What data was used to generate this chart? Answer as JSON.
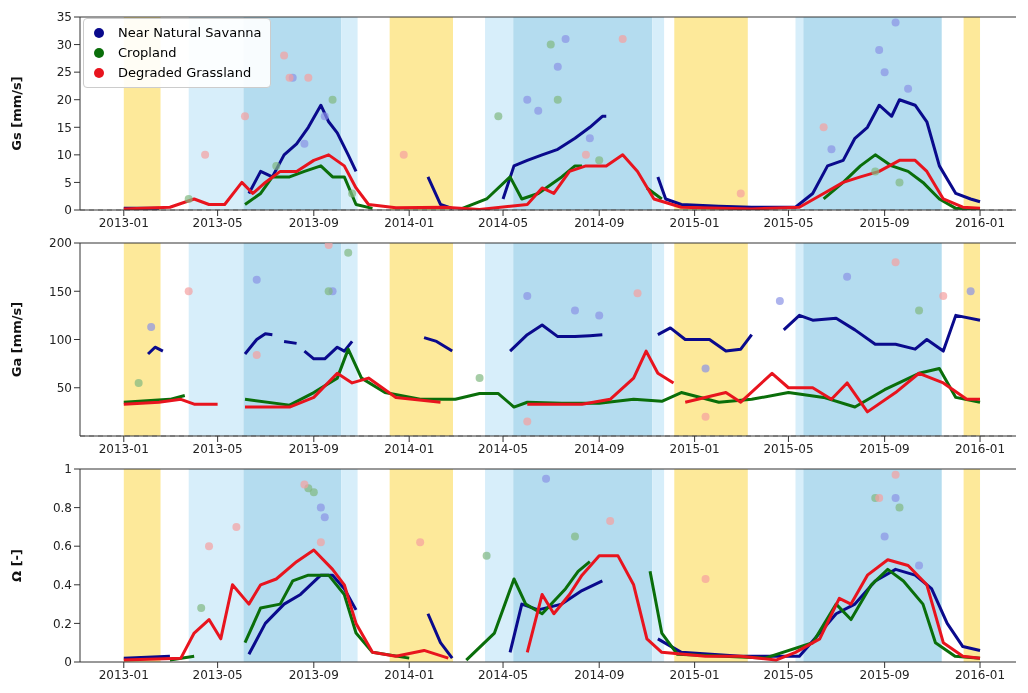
{
  "chart_data": [
    {
      "type": "line",
      "ylabel": "Gs [mm/s]",
      "xlim": [
        "2012-11-06",
        "2016-02-16"
      ],
      "xticks": [
        "2013-01",
        "2013-05",
        "2013-09",
        "2014-01",
        "2014-05",
        "2014-09",
        "2015-01",
        "2015-05",
        "2015-09",
        "2016-01"
      ],
      "ylim": [
        0,
        35
      ],
      "yticks": [
        0,
        5,
        10,
        15,
        20,
        25,
        30,
        35
      ],
      "legend": "top left",
      "ref_lines": [
        {
          "axis": "y",
          "value": 0,
          "color": "#888888",
          "line_style": "dashed"
        }
      ],
      "bands": [
        {
          "axis": "x",
          "from": "2013-01-01",
          "to": "2013-02-17",
          "color": "#fde99a"
        },
        {
          "axis": "x",
          "from": "2013-03-25",
          "to": "2013-06-03",
          "color": "#d7eefa"
        },
        {
          "axis": "x",
          "from": "2013-06-03",
          "to": "2013-10-06",
          "color": "#b4dcef"
        },
        {
          "axis": "x",
          "from": "2013-10-06",
          "to": "2013-10-27",
          "color": "#d7eefa"
        },
        {
          "axis": "x",
          "from": "2013-12-07",
          "to": "2014-02-26",
          "color": "#fde99a"
        },
        {
          "axis": "x",
          "from": "2014-04-08",
          "to": "2014-05-14",
          "color": "#d7eefa"
        },
        {
          "axis": "x",
          "from": "2014-05-14",
          "to": "2014-11-08",
          "color": "#b4dcef"
        },
        {
          "axis": "x",
          "from": "2014-11-08",
          "to": "2014-11-23",
          "color": "#d7eefa"
        },
        {
          "axis": "x",
          "from": "2014-12-06",
          "to": "2015-03-10",
          "color": "#fde99a"
        },
        {
          "axis": "x",
          "from": "2015-05-10",
          "to": "2015-05-20",
          "color": "#d7eefa"
        },
        {
          "axis": "x",
          "from": "2015-05-20",
          "to": "2015-11-13",
          "color": "#b4dcef"
        },
        {
          "axis": "x",
          "from": "2015-12-11",
          "to": "2016-01-01",
          "color": "#fde99a"
        }
      ],
      "series": [
        {
          "type": "scatter",
          "color": "#8a93e6",
          "x": [
            "2013-08-05",
            "2013-08-20",
            "2013-09-15",
            "2014-06-01",
            "2014-06-15",
            "2014-07-10",
            "2014-07-20",
            "2014-08-20",
            "2015-08-25",
            "2015-09-01",
            "2015-09-15",
            "2015-10-01",
            "2015-06-25"
          ],
          "values": [
            24,
            12,
            17,
            20,
            18,
            26,
            31,
            13,
            29,
            25,
            34,
            22,
            11
          ]
        },
        {
          "type": "scatter",
          "color": "#80b880",
          "x": [
            "2013-03-25",
            "2013-07-15",
            "2013-09-25",
            "2014-04-25",
            "2014-07-01",
            "2014-07-10",
            "2014-09-01",
            "2015-08-20",
            "2015-09-20",
            "2013-10-20"
          ],
          "values": [
            2,
            8,
            20,
            17,
            30,
            20,
            9,
            7,
            5,
            3
          ]
        },
        {
          "type": "scatter",
          "color": "#f5a0a0",
          "x": [
            "2013-04-15",
            "2013-07-25",
            "2013-08-01",
            "2013-08-25",
            "2013-12-25",
            "2014-10-01",
            "2014-08-15",
            "2015-06-15",
            "2015-03-01",
            "2013-06-05"
          ],
          "values": [
            10,
            28,
            24,
            24,
            10,
            31,
            10,
            15,
            3,
            17
          ]
        },
        {
          "type": "line",
          "name": "Near Natural Savanna",
          "color": "#0a0a8c",
          "x": [
            "2013-01-01",
            "2013-02-15",
            "2013-04-01",
            "2013-06-10",
            "2013-06-25",
            "2013-07-10",
            "2013-07-25",
            "2013-08-10",
            "2013-08-25",
            "2013-09-10",
            "2013-09-20",
            "2013-10-01",
            "2013-10-15",
            "2013-10-25",
            "2013-12-01",
            "2014-01-25",
            "2014-02-10",
            "2014-02-25",
            "2014-04-01",
            "2014-05-01",
            "2014-05-15",
            "2014-06-01",
            "2014-06-20",
            "2014-07-10",
            "2014-08-01",
            "2014-08-20",
            "2014-09-05",
            "2014-09-10",
            "2014-10-15",
            "2014-11-15",
            "2014-11-25",
            "2014-12-15",
            "2015-02-01",
            "2015-03-15",
            "2015-05-10",
            "2015-06-01",
            "2015-06-20",
            "2015-07-10",
            "2015-07-25",
            "2015-08-10",
            "2015-08-25",
            "2015-09-10",
            "2015-09-20",
            "2015-10-10",
            "2015-10-25",
            "2015-11-10",
            "2015-12-01",
            "2015-12-20",
            "2016-01-01"
          ],
          "values": [
            0.3,
            0.3,
            null,
            3,
            7,
            6,
            10,
            12,
            15,
            19,
            16,
            14,
            10,
            7,
            null,
            6,
            1,
            0.3,
            null,
            2,
            8,
            9,
            10,
            11,
            13,
            15,
            17,
            17,
            null,
            6,
            2,
            1,
            0.7,
            0.5,
            0.5,
            3,
            8,
            9,
            13,
            15,
            19,
            17,
            20,
            19,
            16,
            8,
            3,
            2,
            1.5
          ]
        },
        {
          "type": "line",
          "name": "Cropland",
          "color": "#0a6e0a",
          "x": [
            "2013-06-05",
            "2013-06-25",
            "2013-07-10",
            "2013-08-01",
            "2013-08-20",
            "2013-09-10",
            "2013-09-25",
            "2013-10-10",
            "2013-10-25",
            "2013-11-15",
            "2014-01-01",
            "2014-03-10",
            "2014-04-10",
            "2014-05-10",
            "2014-05-25",
            "2014-06-15",
            "2014-07-15",
            "2014-08-01",
            "2014-08-10",
            "2014-09-20",
            "2014-11-01",
            "2014-11-20",
            "2015-03-01",
            "2015-06-15",
            "2015-07-10",
            "2015-08-01",
            "2015-08-20",
            "2015-09-10",
            "2015-10-01",
            "2015-10-20",
            "2015-11-10",
            "2015-12-01",
            "2016-01-01"
          ],
          "values": [
            1,
            3,
            6,
            6,
            7,
            8,
            6,
            6,
            1,
            0.3,
            null,
            0.3,
            2,
            6,
            2,
            3,
            6,
            8,
            8,
            null,
            4,
            2,
            null,
            2,
            5,
            8,
            10,
            8,
            7,
            5,
            2,
            0.3,
            0.2
          ]
        },
        {
          "type": "line",
          "name": "Degraded Grassland",
          "color": "#e8141e",
          "x": [
            "2013-01-01",
            "2013-03-01",
            "2013-04-01",
            "2013-04-20",
            "2013-05-10",
            "2013-06-01",
            "2013-06-15",
            "2013-07-01",
            "2013-07-20",
            "2013-08-10",
            "2013-09-01",
            "2013-09-20",
            "2013-10-10",
            "2013-10-25",
            "2013-11-10",
            "2013-12-15",
            "2014-02-15",
            "2014-04-01",
            "2014-06-01",
            "2014-06-20",
            "2014-07-05",
            "2014-07-25",
            "2014-08-15",
            "2014-09-10",
            "2014-10-01",
            "2014-10-20",
            "2014-11-10",
            "2014-12-15",
            "2015-03-15",
            "2015-05-15",
            "2015-06-15",
            "2015-07-10",
            "2015-08-01",
            "2015-08-25",
            "2015-09-20",
            "2015-10-10",
            "2015-10-25",
            "2015-11-15",
            "2015-12-10",
            "2016-01-01"
          ],
          "values": [
            0.2,
            0.5,
            2,
            1,
            1,
            5,
            3,
            5,
            7,
            7,
            9,
            10,
            8,
            4,
            1,
            0.4,
            0.5,
            0.1,
            1,
            4,
            3,
            7,
            8,
            8,
            10,
            7,
            2,
            0.5,
            0.2,
            0.5,
            3,
            5,
            6,
            7,
            9,
            9,
            7,
            2,
            0.5,
            0.3
          ]
        }
      ]
    },
    {
      "type": "line",
      "ylabel": "Ga [mm/s]",
      "xlim": [
        "2012-11-06",
        "2016-02-16"
      ],
      "xticks": [
        "2013-01",
        "2013-05",
        "2013-09",
        "2014-01",
        "2014-05",
        "2014-09",
        "2015-01",
        "2015-05",
        "2015-09",
        "2016-01"
      ],
      "ylim": [
        0,
        200
      ],
      "yticks": [
        50,
        100,
        150,
        200
      ],
      "ref_lines": [
        {
          "axis": "y",
          "value": 0,
          "color": "#888888",
          "line_style": "dashed"
        }
      ],
      "bands": [
        {
          "axis": "x",
          "from": "2013-01-01",
          "to": "2013-02-17",
          "color": "#fde99a"
        },
        {
          "axis": "x",
          "from": "2013-03-25",
          "to": "2013-06-03",
          "color": "#d7eefa"
        },
        {
          "axis": "x",
          "from": "2013-06-03",
          "to": "2013-10-06",
          "color": "#b4dcef"
        },
        {
          "axis": "x",
          "from": "2013-10-06",
          "to": "2013-10-27",
          "color": "#d7eefa"
        },
        {
          "axis": "x",
          "from": "2013-12-07",
          "to": "2014-02-26",
          "color": "#fde99a"
        },
        {
          "axis": "x",
          "from": "2014-04-08",
          "to": "2014-05-14",
          "color": "#d7eefa"
        },
        {
          "axis": "x",
          "from": "2014-05-14",
          "to": "2014-11-08",
          "color": "#b4dcef"
        },
        {
          "axis": "x",
          "from": "2014-11-08",
          "to": "2014-11-23",
          "color": "#d7eefa"
        },
        {
          "axis": "x",
          "from": "2014-12-06",
          "to": "2015-03-10",
          "color": "#fde99a"
        },
        {
          "axis": "x",
          "from": "2015-05-10",
          "to": "2015-05-20",
          "color": "#d7eefa"
        },
        {
          "axis": "x",
          "from": "2015-05-20",
          "to": "2015-11-13",
          "color": "#b4dcef"
        },
        {
          "axis": "x",
          "from": "2015-12-11",
          "to": "2016-01-01",
          "color": "#fde99a"
        }
      ],
      "series": [
        {
          "type": "scatter",
          "color": "#8a93e6",
          "x": [
            "2013-02-05",
            "2013-06-20",
            "2013-09-25",
            "2014-06-01",
            "2014-08-01",
            "2015-01-15",
            "2015-04-20",
            "2015-07-15",
            "2015-12-20",
            "2014-09-01"
          ],
          "values": [
            113,
            162,
            150,
            145,
            130,
            70,
            140,
            165,
            150,
            125
          ]
        },
        {
          "type": "scatter",
          "color": "#80b880",
          "x": [
            "2013-10-15",
            "2013-09-20",
            "2015-10-15",
            "2014-04-01",
            "2013-01-20"
          ],
          "values": [
            190,
            150,
            130,
            60,
            55
          ]
        },
        {
          "type": "scatter",
          "color": "#f5a0a0",
          "x": [
            "2013-03-25",
            "2013-09-20",
            "2014-10-20",
            "2015-09-15",
            "2015-11-15",
            "2015-01-15",
            "2013-06-20",
            "2014-06-01"
          ],
          "values": [
            150,
            198,
            148,
            180,
            145,
            20,
            84,
            15
          ]
        },
        {
          "type": "line",
          "color": "#0a0a8c",
          "x": [
            "2013-02-01",
            "2013-02-10",
            "2013-02-20",
            "2013-04-15",
            "2013-06-05",
            "2013-06-20",
            "2013-07-01",
            "2013-07-10",
            "2013-07-18",
            "2013-07-25",
            "2013-08-10",
            "2013-08-15",
            "2013-08-20",
            "2013-09-01",
            "2013-09-15",
            "2013-10-01",
            "2013-10-10",
            "2013-10-20",
            "2013-12-01",
            "2014-01-20",
            "2014-02-05",
            "2014-02-25",
            "2014-04-01",
            "2014-05-10",
            "2014-06-01",
            "2014-06-20",
            "2014-07-10",
            "2014-08-01",
            "2014-08-20",
            "2014-09-05",
            "2014-10-15",
            "2014-11-15",
            "2014-12-01",
            "2014-12-20",
            "2015-01-20",
            "2015-02-10",
            "2015-03-01",
            "2015-03-15",
            "2015-04-05",
            "2015-04-25",
            "2015-05-15",
            "2015-06-01",
            "2015-07-01",
            "2015-07-25",
            "2015-08-20",
            "2015-09-15",
            "2015-10-10",
            "2015-10-25",
            "2015-11-15",
            "2015-12-01",
            "2016-01-01"
          ],
          "values": [
            85,
            92,
            88,
            null,
            85,
            100,
            106,
            105,
            null,
            98,
            96,
            null,
            88,
            80,
            80,
            92,
            88,
            98,
            null,
            102,
            98,
            88,
            null,
            88,
            105,
            115,
            103,
            103,
            104,
            105,
            null,
            105,
            112,
            100,
            100,
            88,
            90,
            105,
            null,
            110,
            125,
            120,
            122,
            110,
            95,
            95,
            90,
            100,
            88,
            125,
            120
          ]
        },
        {
          "type": "line",
          "color": "#0a6e0a",
          "x": [
            "2013-01-01",
            "2013-03-01",
            "2013-03-20",
            "2013-05-01",
            "2013-06-05",
            "2013-08-01",
            "2013-09-01",
            "2013-10-01",
            "2013-10-15",
            "2013-11-01",
            "2013-12-01",
            "2014-01-15",
            "2014-03-01",
            "2014-04-01",
            "2014-04-25",
            "2014-05-15",
            "2014-06-01",
            "2014-07-15",
            "2014-09-01",
            "2014-10-15",
            "2014-11-20",
            "2014-12-15",
            "2015-02-01",
            "2015-03-15",
            "2015-05-01",
            "2015-06-15",
            "2015-07-25",
            "2015-09-01",
            "2015-10-15",
            "2015-11-10",
            "2015-12-01",
            "2016-01-01"
          ],
          "values": [
            35,
            38,
            42,
            null,
            38,
            32,
            45,
            60,
            90,
            60,
            45,
            38,
            38,
            44,
            44,
            30,
            35,
            34,
            34,
            38,
            36,
            45,
            35,
            38,
            45,
            40,
            30,
            48,
            65,
            70,
            40,
            35
          ]
        },
        {
          "type": "line",
          "color": "#e8141e",
          "x": [
            "2013-01-01",
            "2013-02-15",
            "2013-03-15",
            "2013-04-01",
            "2013-05-01",
            "2013-05-20",
            "2013-06-05",
            "2013-08-01",
            "2013-09-01",
            "2013-10-01",
            "2013-10-20",
            "2013-11-10",
            "2013-12-15",
            "2014-02-10",
            "2014-04-01",
            "2014-06-01",
            "2014-08-10",
            "2014-09-15",
            "2014-10-15",
            "2014-10-31",
            "2014-11-15",
            "2014-12-05",
            "2014-12-12",
            "2014-12-20",
            "2015-02-10",
            "2015-03-01",
            "2015-04-10",
            "2015-05-01",
            "2015-06-01",
            "2015-06-25",
            "2015-07-15",
            "2015-08-10",
            "2015-09-15",
            "2015-10-15",
            "2015-11-15",
            "2015-12-15",
            "2016-01-01"
          ],
          "values": [
            33,
            35,
            38,
            33,
            33,
            null,
            30,
            30,
            40,
            65,
            55,
            60,
            40,
            35,
            null,
            33,
            33,
            38,
            60,
            88,
            65,
            55,
            null,
            35,
            45,
            35,
            65,
            50,
            50,
            38,
            55,
            25,
            45,
            65,
            55,
            38,
            38
          ]
        }
      ]
    },
    {
      "type": "line",
      "ylabel": "Ω [-]",
      "xlim": [
        "2012-11-06",
        "2016-02-16"
      ],
      "xticks": [
        "2013-01",
        "2013-05",
        "2013-09",
        "2014-01",
        "2014-05",
        "2014-09",
        "2015-01",
        "2015-05",
        "2015-09",
        "2016-01"
      ],
      "ylim": [
        0,
        1
      ],
      "yticks": [
        0,
        0.2,
        0.4,
        0.6,
        0.8,
        1
      ],
      "bands": [
        {
          "axis": "x",
          "from": "2013-01-01",
          "to": "2013-02-17",
          "color": "#fde99a"
        },
        {
          "axis": "x",
          "from": "2013-03-25",
          "to": "2013-06-03",
          "color": "#d7eefa"
        },
        {
          "axis": "x",
          "from": "2013-06-03",
          "to": "2013-10-06",
          "color": "#b4dcef"
        },
        {
          "axis": "x",
          "from": "2013-10-06",
          "to": "2013-10-27",
          "color": "#d7eefa"
        },
        {
          "axis": "x",
          "from": "2013-12-07",
          "to": "2014-02-26",
          "color": "#fde99a"
        },
        {
          "axis": "x",
          "from": "2014-04-08",
          "to": "2014-05-14",
          "color": "#d7eefa"
        },
        {
          "axis": "x",
          "from": "2014-05-14",
          "to": "2014-11-08",
          "color": "#b4dcef"
        },
        {
          "axis": "x",
          "from": "2014-11-08",
          "to": "2014-11-23",
          "color": "#d7eefa"
        },
        {
          "axis": "x",
          "from": "2014-12-06",
          "to": "2015-03-10",
          "color": "#fde99a"
        },
        {
          "axis": "x",
          "from": "2015-05-10",
          "to": "2015-05-20",
          "color": "#d7eefa"
        },
        {
          "axis": "x",
          "from": "2015-05-20",
          "to": "2015-11-13",
          "color": "#b4dcef"
        },
        {
          "axis": "x",
          "from": "2015-12-11",
          "to": "2016-01-01",
          "color": "#fde99a"
        }
      ],
      "series": [
        {
          "type": "scatter",
          "color": "#8a93e6",
          "x": [
            "2013-09-10",
            "2013-09-15",
            "2014-06-25",
            "2015-09-01",
            "2015-09-15",
            "2015-10-15"
          ],
          "values": [
            0.8,
            0.75,
            0.95,
            0.65,
            0.85,
            0.5
          ]
        },
        {
          "type": "scatter",
          "color": "#80b880",
          "x": [
            "2013-08-25",
            "2013-09-01",
            "2014-04-10",
            "2015-08-20",
            "2015-09-20",
            "2014-08-01",
            "2013-04-10"
          ],
          "values": [
            0.9,
            0.88,
            0.55,
            0.85,
            0.8,
            0.65,
            0.28
          ]
        },
        {
          "type": "scatter",
          "color": "#f5a0a0",
          "x": [
            "2013-04-20",
            "2013-05-25",
            "2013-08-20",
            "2013-09-10",
            "2014-01-15",
            "2014-09-15",
            "2015-01-15",
            "2015-09-15",
            "2015-08-25"
          ],
          "values": [
            0.6,
            0.7,
            0.92,
            0.62,
            0.62,
            0.73,
            0.43,
            0.97,
            0.85
          ]
        },
        {
          "type": "line",
          "color": "#0a0a8c",
          "x": [
            "2013-01-01",
            "2013-03-01",
            "2013-04-15",
            "2013-06-10",
            "2013-07-01",
            "2013-07-25",
            "2013-08-15",
            "2013-09-10",
            "2013-09-25",
            "2013-10-10",
            "2013-10-25",
            "2013-12-01",
            "2014-01-25",
            "2014-02-10",
            "2014-02-25",
            "2014-04-01",
            "2014-05-10",
            "2014-05-25",
            "2014-06-15",
            "2014-07-15",
            "2014-08-10",
            "2014-09-05",
            "2014-10-15",
            "2014-11-15",
            "2014-12-15",
            "2015-03-01",
            "2015-05-15",
            "2015-06-10",
            "2015-07-01",
            "2015-07-25",
            "2015-08-20",
            "2015-09-15",
            "2015-10-10",
            "2015-10-31",
            "2015-11-20",
            "2015-12-10",
            "2016-01-01"
          ],
          "values": [
            0.02,
            0.03,
            null,
            0.04,
            0.2,
            0.3,
            0.35,
            0.45,
            0.45,
            0.38,
            0.27,
            null,
            0.25,
            0.1,
            0.02,
            null,
            0.05,
            0.3,
            0.27,
            0.3,
            0.37,
            0.42,
            null,
            0.12,
            0.05,
            0.03,
            0.03,
            0.15,
            0.25,
            0.3,
            0.42,
            0.48,
            0.45,
            0.38,
            0.2,
            0.08,
            0.06
          ]
        },
        {
          "type": "line",
          "color": "#0a6e0a",
          "x": [
            "2013-03-01",
            "2013-04-01",
            "2013-05-01",
            "2013-06-05",
            "2013-06-25",
            "2013-07-20",
            "2013-08-05",
            "2013-08-25",
            "2013-09-20",
            "2013-10-10",
            "2013-10-25",
            "2013-11-15",
            "2014-01-01",
            "2014-02-10",
            "2014-03-15",
            "2014-04-20",
            "2014-05-15",
            "2014-05-30",
            "2014-06-20",
            "2014-07-20",
            "2014-08-05",
            "2014-08-20",
            "2014-10-01",
            "2014-11-05",
            "2014-11-20",
            "2014-12-10",
            "2015-04-01",
            "2015-06-01",
            "2015-07-01",
            "2015-07-20",
            "2015-08-15",
            "2015-09-05",
            "2015-09-25",
            "2015-10-20",
            "2015-11-05",
            "2015-11-30",
            "2016-01-01"
          ],
          "values": [
            0.01,
            0.03,
            null,
            0.1,
            0.28,
            0.3,
            0.42,
            0.45,
            0.45,
            0.35,
            0.15,
            0.05,
            0.02,
            null,
            0.01,
            0.15,
            0.43,
            0.3,
            0.25,
            0.38,
            0.47,
            0.52,
            null,
            0.47,
            0.15,
            0.04,
            0.02,
            0.1,
            0.3,
            0.22,
            0.4,
            0.48,
            0.42,
            0.3,
            0.1,
            0.03,
            0.02
          ]
        },
        {
          "type": "line",
          "color": "#e8141e",
          "x": [
            "2013-01-01",
            "2013-03-15",
            "2013-04-01",
            "2013-04-20",
            "2013-05-05",
            "2013-05-20",
            "2013-06-10",
            "2013-06-25",
            "2013-07-15",
            "2013-08-10",
            "2013-09-01",
            "2013-09-25",
            "2013-10-10",
            "2013-10-25",
            "2013-11-15",
            "2013-12-15",
            "2014-01-20",
            "2014-02-20",
            "2014-04-01",
            "2014-06-01",
            "2014-06-20",
            "2014-07-05",
            "2014-07-25",
            "2014-08-10",
            "2014-09-01",
            "2014-09-25",
            "2014-10-15",
            "2014-11-01",
            "2014-11-20",
            "2015-01-15",
            "2015-03-01",
            "2015-04-15",
            "2015-05-10",
            "2015-06-10",
            "2015-07-05",
            "2015-07-20",
            "2015-08-10",
            "2015-09-05",
            "2015-10-01",
            "2015-10-25",
            "2015-11-15",
            "2015-12-10",
            "2016-01-01"
          ],
          "values": [
            0.01,
            0.02,
            0.15,
            0.22,
            0.12,
            0.4,
            0.3,
            0.4,
            0.43,
            0.52,
            0.58,
            0.48,
            0.4,
            0.2,
            0.05,
            0.03,
            0.06,
            0.02,
            null,
            0.05,
            0.35,
            0.25,
            0.35,
            0.45,
            0.55,
            0.55,
            0.4,
            0.12,
            0.05,
            0.03,
            0.03,
            0.01,
            0.05,
            0.12,
            0.33,
            0.3,
            0.45,
            0.53,
            0.5,
            0.4,
            0.1,
            0.03,
            0.02
          ]
        }
      ]
    }
  ]
}
